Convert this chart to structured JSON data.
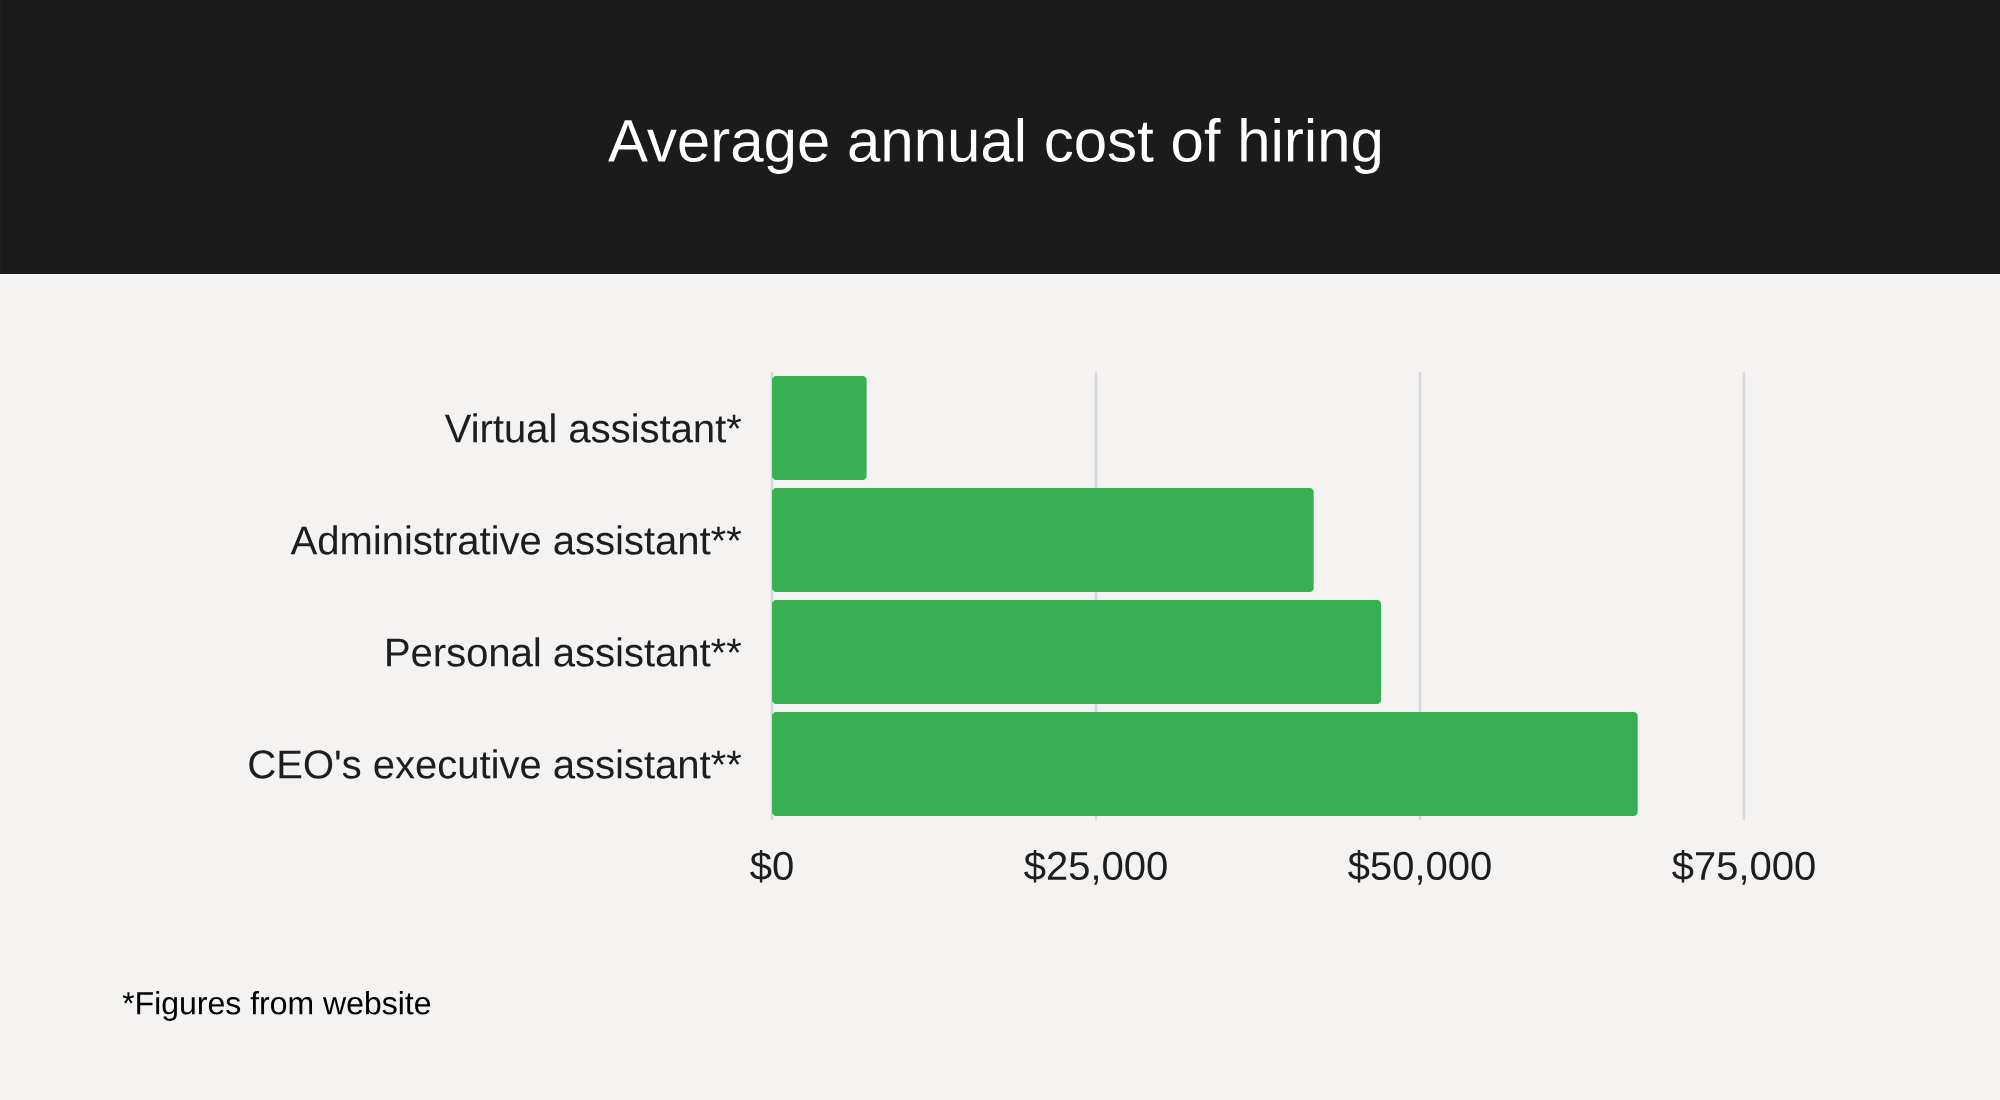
{
  "chart_data": {
    "type": "bar",
    "orientation": "horizontal",
    "title": "Average annual cost of hiring",
    "categories": [
      "Virtual assistant*",
      "Administrative assistant**",
      "Personal assistant**",
      "CEO's executive assistant**"
    ],
    "values": [
      7300,
      41800,
      47000,
      66800
    ],
    "color": "#37b054",
    "xlim": [
      0,
      75000
    ],
    "xticks": [
      {
        "value": 0,
        "label": "$0"
      },
      {
        "value": 25000,
        "label": "$25,000"
      },
      {
        "value": 50000,
        "label": "$50,000"
      },
      {
        "value": 75000,
        "label": "$75,000"
      }
    ],
    "grid": "x",
    "annotations": [
      "*Figures from website"
    ]
  }
}
